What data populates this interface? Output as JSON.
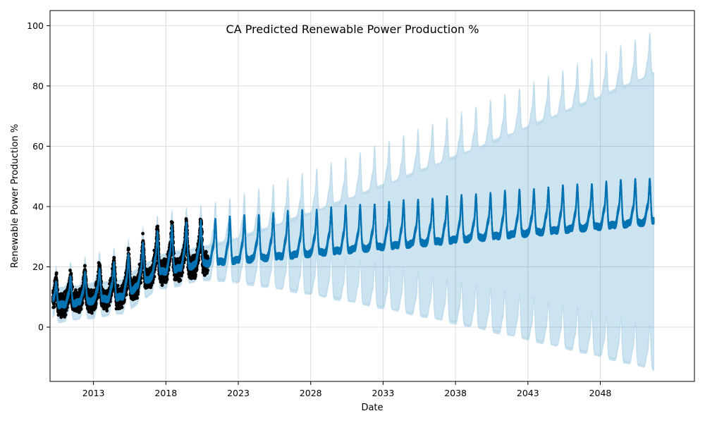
{
  "chart_data": {
    "type": "line",
    "title": "CA Predicted Renewable Power Production %",
    "xlabel": "Date",
    "ylabel": "Renewable Power Production %",
    "xlim": [
      2010.0,
      2054.5
    ],
    "ylim": [
      -18,
      105
    ],
    "x_ticks": [
      {
        "label": "2013",
        "value": 2013
      },
      {
        "label": "2018",
        "value": 2018
      },
      {
        "label": "2023",
        "value": 2023
      },
      {
        "label": "2028",
        "value": 2028
      },
      {
        "label": "2033",
        "value": 2033
      },
      {
        "label": "2038",
        "value": 2038
      },
      {
        "label": "2043",
        "value": 2043
      },
      {
        "label": "2048",
        "value": 2048
      }
    ],
    "y_ticks": [
      {
        "label": "0",
        "value": 0
      },
      {
        "label": "20",
        "value": 20
      },
      {
        "label": "40",
        "value": 40
      },
      {
        "label": "60",
        "value": 60
      },
      {
        "label": "80",
        "value": 80
      },
      {
        "label": "100",
        "value": 100
      }
    ],
    "grid": true,
    "series": [
      {
        "name": "observed",
        "kind": "scatter",
        "color": "#000000",
        "x_range": [
          2010.2,
          2020.9
        ],
        "trend_points": [
          [
            2010.2,
            10
          ],
          [
            2015,
            15
          ],
          [
            2017.5,
            24
          ],
          [
            2020.9,
            27
          ]
        ],
        "seasonal_amplitude_points": [
          [
            2010.2,
            3
          ],
          [
            2015,
            5
          ],
          [
            2018,
            6
          ],
          [
            2020.9,
            6
          ]
        ],
        "noise": 5
      },
      {
        "name": "forecast",
        "kind": "line",
        "color": "#0072B2",
        "x_range": [
          2010.2,
          2051.7
        ],
        "trend_points": [
          [
            2010.2,
            10
          ],
          [
            2015,
            15
          ],
          [
            2017.5,
            24
          ],
          [
            2020.5,
            27
          ],
          [
            2051.7,
            41
          ]
        ],
        "seasonal_amplitude_points": [
          [
            2010.2,
            3
          ],
          [
            2015,
            5
          ],
          [
            2018,
            6
          ],
          [
            2051.7,
            6
          ]
        ],
        "start_value": 11,
        "end_value": 40
      },
      {
        "name": "uncertainty interval",
        "kind": "band",
        "color": "#0072B2",
        "opacity": 0.2,
        "x_range": [
          2010.2,
          2051.7
        ],
        "upper_end": 90,
        "lower_end": -8,
        "upper_max": 99,
        "lower_min": -12
      }
    ]
  }
}
